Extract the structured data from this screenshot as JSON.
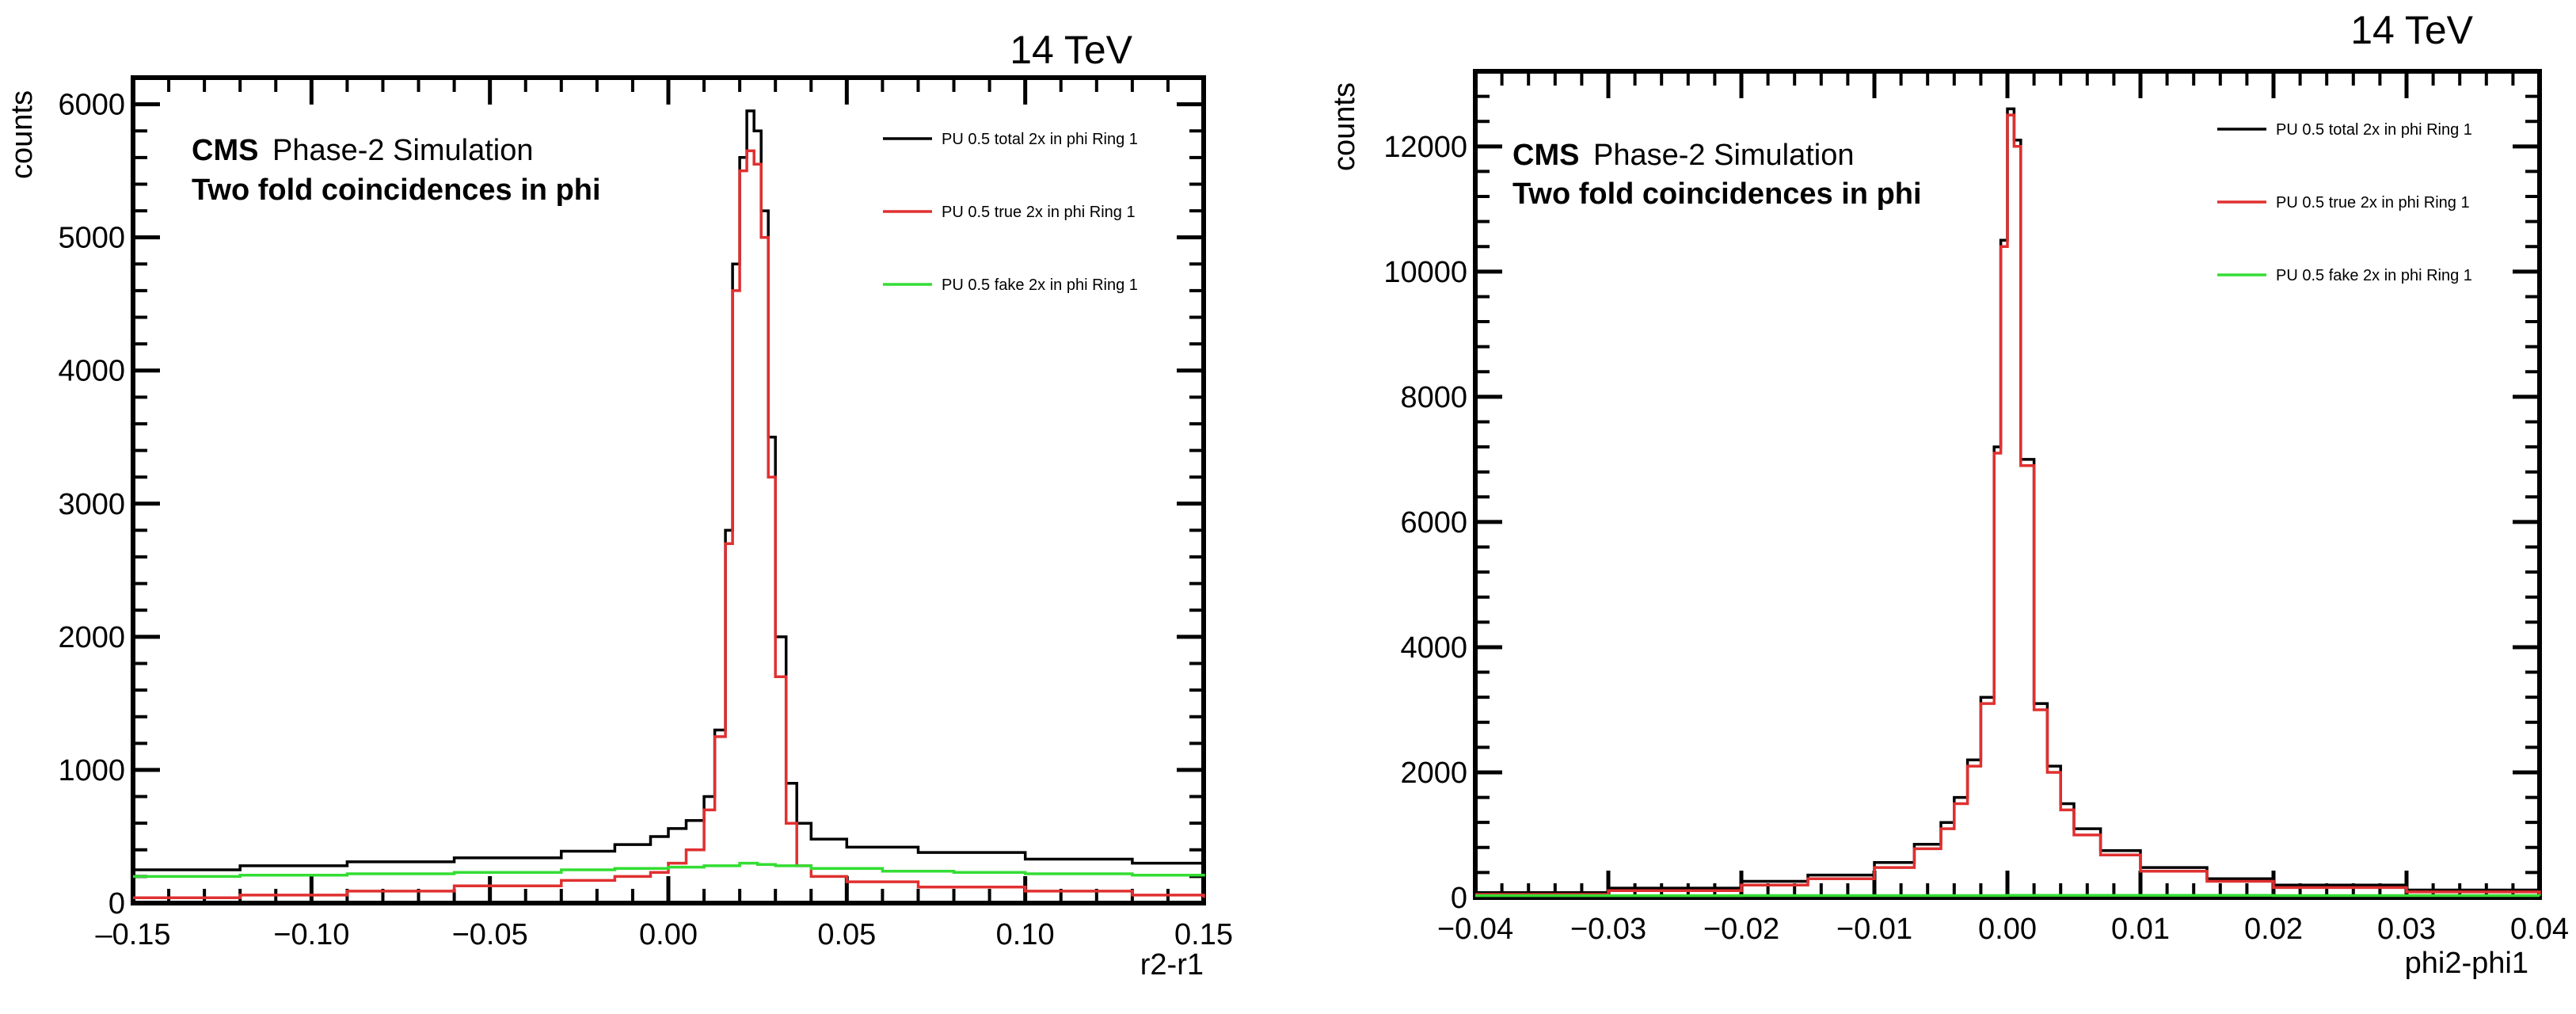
{
  "chart_data": [
    {
      "type": "line",
      "energy_label": "14 TeV",
      "experiment": "CMS",
      "simulation_label": "Phase-2 Simulation",
      "subtitle": "Two fold coincidences in phi",
      "xlabel": "r2-r1",
      "ylabel": "counts",
      "xlim": [
        -0.15,
        0.15
      ],
      "ylim": [
        0,
        6200
      ],
      "xticks": [
        -0.15,
        -0.1,
        -0.05,
        0.0,
        0.05,
        0.1,
        0.15
      ],
      "xtick_labels": [
        "–0.15",
        "−0.10",
        "−0.05",
        "0.00",
        "0.05",
        "0.10",
        "0.15"
      ],
      "yticks": [
        0,
        1000,
        2000,
        3000,
        4000,
        5000,
        6000
      ],
      "ytick_labels": [
        "0",
        "1000",
        "2000",
        "3000",
        "4000",
        "5000",
        "6000"
      ],
      "legend_position": "top-right",
      "series": [
        {
          "name": "PU 0.5 total 2x in phi Ring 1",
          "color": "#000000",
          "x": [
            -0.15,
            -0.12,
            -0.09,
            -0.06,
            -0.03,
            -0.015,
            -0.005,
            0.0,
            0.005,
            0.01,
            0.013,
            0.016,
            0.018,
            0.02,
            0.022,
            0.024,
            0.026,
            0.028,
            0.03,
            0.033,
            0.036,
            0.04,
            0.05,
            0.07,
            0.1,
            0.13,
            0.15
          ],
          "y": [
            250,
            280,
            310,
            340,
            390,
            440,
            500,
            560,
            620,
            800,
            1300,
            2800,
            4800,
            5600,
            5950,
            5800,
            5200,
            3500,
            2000,
            900,
            600,
            480,
            420,
            380,
            330,
            300,
            320
          ]
        },
        {
          "name": "PU 0.5 true 2x in phi Ring 1",
          "color": "#e03030",
          "x": [
            -0.15,
            -0.12,
            -0.09,
            -0.06,
            -0.03,
            -0.015,
            -0.005,
            0.0,
            0.005,
            0.01,
            0.013,
            0.016,
            0.018,
            0.02,
            0.022,
            0.024,
            0.026,
            0.028,
            0.03,
            0.033,
            0.036,
            0.04,
            0.05,
            0.07,
            0.1,
            0.13,
            0.15
          ],
          "y": [
            40,
            60,
            90,
            130,
            170,
            200,
            230,
            300,
            400,
            700,
            1250,
            2700,
            4600,
            5500,
            5650,
            5550,
            5000,
            3200,
            1700,
            600,
            280,
            200,
            160,
            120,
            90,
            60,
            40
          ]
        },
        {
          "name": "PU 0.5 fake 2x in phi Ring 1",
          "color": "#33dd33",
          "x": [
            -0.15,
            -0.12,
            -0.09,
            -0.06,
            -0.03,
            -0.015,
            0.0,
            0.01,
            0.02,
            0.025,
            0.03,
            0.04,
            0.06,
            0.08,
            0.1,
            0.13,
            0.15
          ],
          "y": [
            200,
            210,
            220,
            230,
            250,
            260,
            270,
            280,
            300,
            290,
            280,
            260,
            240,
            230,
            220,
            210,
            200
          ]
        }
      ]
    },
    {
      "type": "line",
      "energy_label": "14 TeV",
      "experiment": "CMS",
      "simulation_label": "Phase-2 Simulation",
      "subtitle": "Two fold coincidences in phi",
      "xlabel": "phi2-phi1",
      "ylabel": "counts",
      "xlim": [
        -0.04,
        0.04
      ],
      "ylim": [
        0,
        13200
      ],
      "xticks": [
        -0.04,
        -0.03,
        -0.02,
        -0.01,
        0.0,
        0.01,
        0.02,
        0.03,
        0.04
      ],
      "xtick_labels": [
        "−0.04",
        "−0.03",
        "−0.02",
        "−0.01",
        "0.00",
        "0.01",
        "0.02",
        "0.03",
        "0.04"
      ],
      "yticks": [
        0,
        2000,
        4000,
        6000,
        8000,
        10000,
        12000
      ],
      "ytick_labels": [
        "0",
        "2000",
        "4000",
        "6000",
        "8000",
        "10000",
        "12000"
      ],
      "legend_position": "top-right",
      "series": [
        {
          "name": "PU 0.5 total 2x in phi Ring 1",
          "color": "#000000",
          "x": [
            -0.04,
            -0.03,
            -0.02,
            -0.015,
            -0.01,
            -0.007,
            -0.005,
            -0.004,
            -0.003,
            -0.002,
            -0.001,
            -0.0005,
            0.0,
            0.0005,
            0.001,
            0.002,
            0.003,
            0.004,
            0.005,
            0.007,
            0.01,
            0.015,
            0.02,
            0.03,
            0.04
          ],
          "y": [
            80,
            150,
            260,
            360,
            560,
            850,
            1200,
            1600,
            2200,
            3200,
            7200,
            10500,
            12600,
            12100,
            7000,
            3100,
            2100,
            1500,
            1100,
            750,
            480,
            300,
            200,
            120,
            80
          ]
        },
        {
          "name": "PU 0.5 true 2x in phi Ring 1",
          "color": "#e03030",
          "x": [
            -0.04,
            -0.03,
            -0.02,
            -0.015,
            -0.01,
            -0.007,
            -0.005,
            -0.004,
            -0.003,
            -0.002,
            -0.001,
            -0.0005,
            0.0,
            0.0005,
            0.001,
            0.002,
            0.003,
            0.004,
            0.005,
            0.007,
            0.01,
            0.015,
            0.02,
            0.03,
            0.04
          ],
          "y": [
            50,
            110,
            200,
            300,
            480,
            780,
            1100,
            1500,
            2100,
            3100,
            7100,
            10400,
            12500,
            12000,
            6900,
            3000,
            2000,
            1400,
            1000,
            680,
            420,
            260,
            160,
            90,
            50
          ]
        },
        {
          "name": "PU 0.5 fake 2x in phi Ring 1",
          "color": "#33dd33",
          "x": [
            -0.04,
            -0.02,
            0.0,
            0.02,
            0.04
          ],
          "y": [
            30,
            32,
            35,
            32,
            30
          ]
        }
      ]
    }
  ]
}
